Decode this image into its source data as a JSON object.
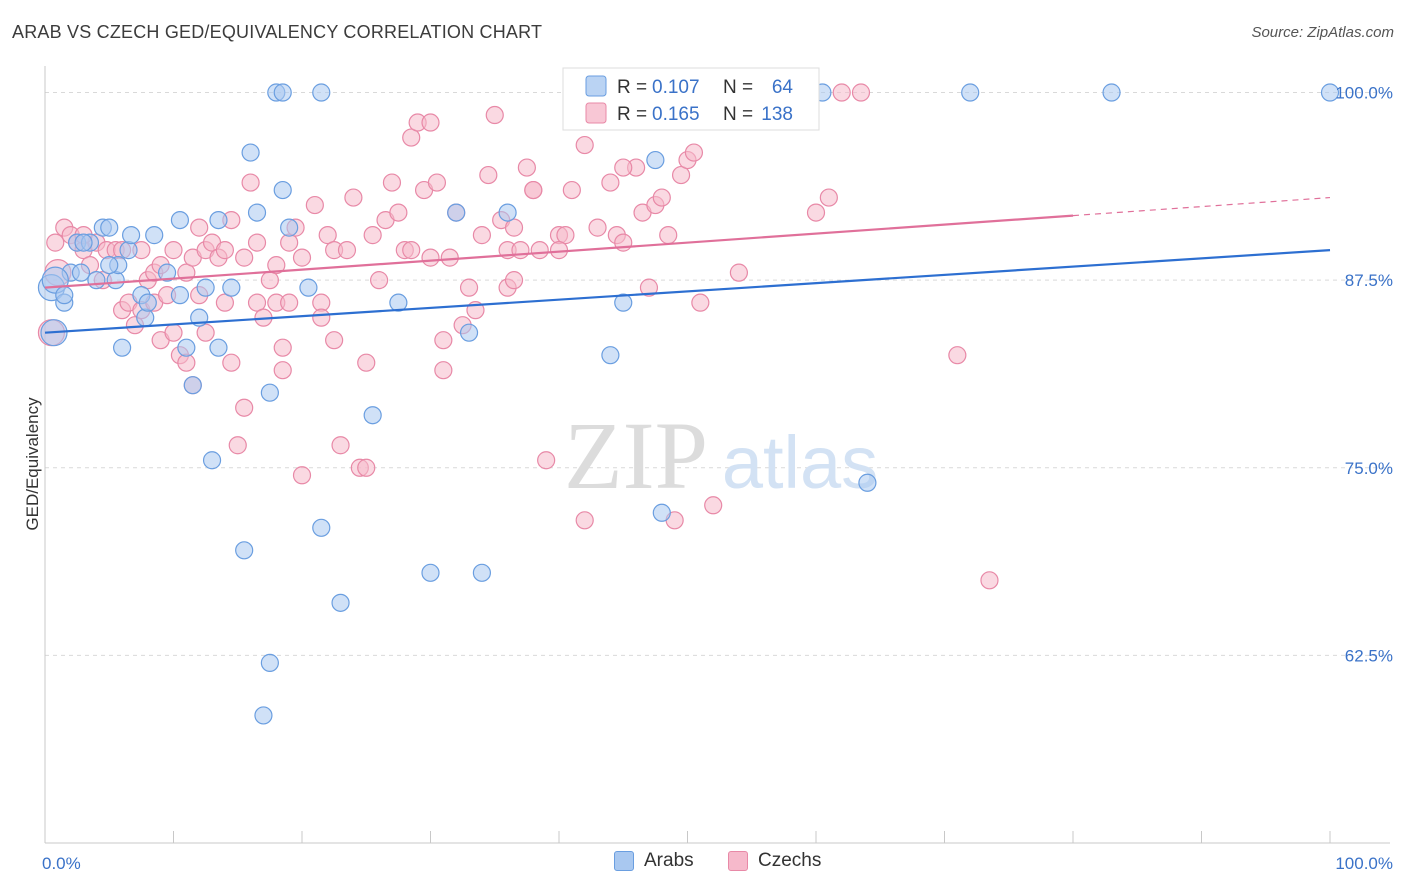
{
  "header": {
    "title": "ARAB VS CZECH GED/EQUIVALENCY CORRELATION CHART",
    "source": "Source: ZipAtlas.com"
  },
  "watermark": {
    "zip": "ZIP",
    "atlas": "atlas"
  },
  "colors": {
    "arabs_fill": "#a9c8f0",
    "arabs_stroke": "#6a9ee0",
    "arabs_line": "#2d6fd1",
    "czechs_fill": "#f6b9cb",
    "czechs_stroke": "#e889a7",
    "czechs_line": "#e0709a",
    "axis_label": "#3a72c8"
  },
  "chart_data": {
    "type": "scatter",
    "title": "ARAB VS CZECH GED/EQUIVALENCY CORRELATION CHART",
    "xlabel": "",
    "ylabel": "GED/Equivalency",
    "xlim": [
      0,
      100
    ],
    "ylim": [
      50,
      101.5
    ],
    "x_tick_labels": [
      {
        "value": 0,
        "label": "0.0%"
      },
      {
        "value": 100,
        "label": "100.0%"
      }
    ],
    "y_tick_labels": [
      {
        "value": 100,
        "label": "100.0%"
      },
      {
        "value": 87.5,
        "label": "87.5%"
      },
      {
        "value": 75,
        "label": "75.0%"
      },
      {
        "value": 62.5,
        "label": "62.5%"
      }
    ],
    "grid": "dashed-horizontal",
    "legend_placement": "top-center",
    "legend_stats": [
      {
        "r_label": "R =",
        "r_value": "0.107",
        "n_label": "N =",
        "n_value": "64"
      },
      {
        "r_label": "R =",
        "r_value": "0.165",
        "n_label": "N =",
        "n_value": "138"
      }
    ],
    "series": [
      {
        "name": "Arabs",
        "trend": {
          "x": [
            0,
            100
          ],
          "y": [
            84.0,
            89.5
          ]
        },
        "points": [
          [
            0.5,
            87
          ],
          [
            0.7,
            84
          ],
          [
            1.5,
            86
          ],
          [
            2,
            88
          ],
          [
            2.5,
            90
          ],
          [
            2.8,
            88
          ],
          [
            3.5,
            90
          ],
          [
            4,
            87.5
          ],
          [
            4.5,
            91
          ],
          [
            5,
            91
          ],
          [
            5.5,
            87.5
          ],
          [
            5.7,
            88.5
          ],
          [
            6,
            83
          ],
          [
            6.5,
            89.5
          ],
          [
            6.7,
            90.5
          ],
          [
            7.5,
            86.5
          ],
          [
            7.8,
            85
          ],
          [
            8,
            86
          ],
          [
            8.5,
            90.5
          ],
          [
            9.5,
            88
          ],
          [
            10.5,
            86.5
          ],
          [
            10.5,
            91.5
          ],
          [
            11,
            83
          ],
          [
            11.5,
            80.5
          ],
          [
            12,
            85
          ],
          [
            12.5,
            87
          ],
          [
            13,
            75.5
          ],
          [
            13.5,
            83
          ],
          [
            13.5,
            91.5
          ],
          [
            14.5,
            87
          ],
          [
            15.5,
            69.5
          ],
          [
            16,
            96
          ],
          [
            16.5,
            92
          ],
          [
            17,
            58.5
          ],
          [
            17.5,
            62
          ],
          [
            17.5,
            80
          ],
          [
            18.5,
            93.5
          ],
          [
            19,
            91
          ],
          [
            20.5,
            87
          ],
          [
            21.5,
            71
          ],
          [
            23,
            66
          ],
          [
            25.5,
            78.5
          ],
          [
            27.5,
            86
          ],
          [
            30,
            68
          ],
          [
            32,
            92
          ],
          [
            33,
            84
          ],
          [
            34,
            68
          ],
          [
            36,
            92
          ],
          [
            44,
            82.5
          ],
          [
            45,
            86
          ],
          [
            47.5,
            95.5
          ],
          [
            48,
            72
          ],
          [
            60.5,
            100
          ],
          [
            64,
            74
          ],
          [
            72,
            100
          ],
          [
            83,
            100
          ],
          [
            100,
            100
          ],
          [
            18,
            100
          ],
          [
            18.5,
            100
          ],
          [
            21.5,
            100
          ],
          [
            0.8,
            87.5
          ],
          [
            1.5,
            86.5
          ],
          [
            5,
            88.5
          ],
          [
            3,
            90
          ]
        ]
      },
      {
        "name": "Czechs",
        "trend": {
          "x": [
            0,
            80
          ],
          "y": [
            87.0,
            91.8
          ]
        },
        "trend_ext": {
          "x": [
            80,
            100
          ],
          "y": [
            91.8,
            93.0
          ]
        },
        "points": [
          [
            0.5,
            84
          ],
          [
            0.8,
            90
          ],
          [
            1,
            88
          ],
          [
            1.5,
            91
          ],
          [
            2,
            90.5
          ],
          [
            2.5,
            90
          ],
          [
            3,
            89.5
          ],
          [
            3.5,
            88.5
          ],
          [
            4,
            90
          ],
          [
            4.5,
            87.5
          ],
          [
            4.8,
            89.5
          ],
          [
            5.5,
            89.5
          ],
          [
            6,
            89.5
          ],
          [
            6,
            85.5
          ],
          [
            6.5,
            86
          ],
          [
            7,
            84.5
          ],
          [
            7.5,
            89.5
          ],
          [
            7.5,
            85.5
          ],
          [
            8,
            87.5
          ],
          [
            8.5,
            86
          ],
          [
            8.5,
            88
          ],
          [
            9,
            83.5
          ],
          [
            9,
            88.5
          ],
          [
            9.5,
            86.5
          ],
          [
            10,
            89.5
          ],
          [
            10,
            84
          ],
          [
            10.5,
            82.5
          ],
          [
            11,
            82
          ],
          [
            11,
            88
          ],
          [
            11.5,
            80.5
          ],
          [
            11.5,
            89
          ],
          [
            12,
            86.5
          ],
          [
            12.5,
            84
          ],
          [
            12.5,
            89.5
          ],
          [
            13,
            90
          ],
          [
            13.5,
            89
          ],
          [
            14,
            89.5
          ],
          [
            14.5,
            91.5
          ],
          [
            14,
            86
          ],
          [
            14.5,
            82
          ],
          [
            15,
            76.5
          ],
          [
            15.5,
            79
          ],
          [
            15.5,
            89
          ],
          [
            16,
            94
          ],
          [
            16.5,
            90
          ],
          [
            16.5,
            86
          ],
          [
            17,
            85
          ],
          [
            17.5,
            87.5
          ],
          [
            18,
            86
          ],
          [
            18,
            88.5
          ],
          [
            18.5,
            83
          ],
          [
            18.5,
            81.5
          ],
          [
            19,
            86
          ],
          [
            19,
            90
          ],
          [
            19.5,
            91
          ],
          [
            20,
            74.5
          ],
          [
            20,
            89
          ],
          [
            21,
            92.5
          ],
          [
            21.5,
            86
          ],
          [
            21.5,
            85
          ],
          [
            22,
            90.5
          ],
          [
            22.5,
            89.5
          ],
          [
            23,
            76.5
          ],
          [
            23.5,
            89.5
          ],
          [
            24,
            93
          ],
          [
            24.5,
            75
          ],
          [
            25,
            82
          ],
          [
            25.5,
            90.5
          ],
          [
            26,
            87.5
          ],
          [
            26.5,
            91.5
          ],
          [
            27,
            94
          ],
          [
            27.5,
            92
          ],
          [
            28,
            89.5
          ],
          [
            28.5,
            97
          ],
          [
            29,
            98
          ],
          [
            29.5,
            93.5
          ],
          [
            30,
            89
          ],
          [
            30.5,
            94
          ],
          [
            31,
            83.5
          ],
          [
            31,
            81.5
          ],
          [
            31.5,
            89
          ],
          [
            32,
            92
          ],
          [
            32.5,
            84.5
          ],
          [
            33,
            87
          ],
          [
            33.5,
            85.5
          ],
          [
            34,
            90.5
          ],
          [
            34.5,
            94.5
          ],
          [
            35,
            98.5
          ],
          [
            35.5,
            91.5
          ],
          [
            36,
            89.5
          ],
          [
            36,
            87
          ],
          [
            36.5,
            91
          ],
          [
            37,
            89.5
          ],
          [
            37.5,
            95
          ],
          [
            38,
            93.5
          ],
          [
            38.5,
            89.5
          ],
          [
            39,
            75.5
          ],
          [
            40,
            90.5
          ],
          [
            40.5,
            90.5
          ],
          [
            41,
            93.5
          ],
          [
            42,
            96.5
          ],
          [
            42,
            71.5
          ],
          [
            43,
            91
          ],
          [
            44,
            94
          ],
          [
            44.5,
            90.5
          ],
          [
            45,
            90
          ],
          [
            46,
            95
          ],
          [
            46.5,
            92
          ],
          [
            47,
            87
          ],
          [
            47.5,
            92.5
          ],
          [
            48,
            93
          ],
          [
            48.5,
            90.5
          ],
          [
            49,
            71.5
          ],
          [
            49.5,
            94.5
          ],
          [
            50,
            95.5
          ],
          [
            50.5,
            96
          ],
          [
            51,
            86
          ],
          [
            52,
            72.5
          ],
          [
            53,
            100
          ],
          [
            54,
            88
          ],
          [
            56,
            100
          ],
          [
            57.5,
            100
          ],
          [
            60,
            92
          ],
          [
            61,
            93
          ],
          [
            62,
            100
          ],
          [
            63.5,
            100
          ],
          [
            71,
            82.5
          ],
          [
            73.5,
            67.5
          ],
          [
            3,
            90.5
          ],
          [
            25,
            75
          ],
          [
            36.5,
            87.5
          ],
          [
            45,
            95
          ],
          [
            12,
            91
          ],
          [
            30,
            98
          ],
          [
            38,
            93.5
          ],
          [
            40,
            89.5
          ],
          [
            28.5,
            89.5
          ],
          [
            22.5,
            83.5
          ]
        ]
      }
    ]
  },
  "legend_bottom": [
    {
      "label": "Arabs"
    },
    {
      "label": "Czechs"
    }
  ]
}
